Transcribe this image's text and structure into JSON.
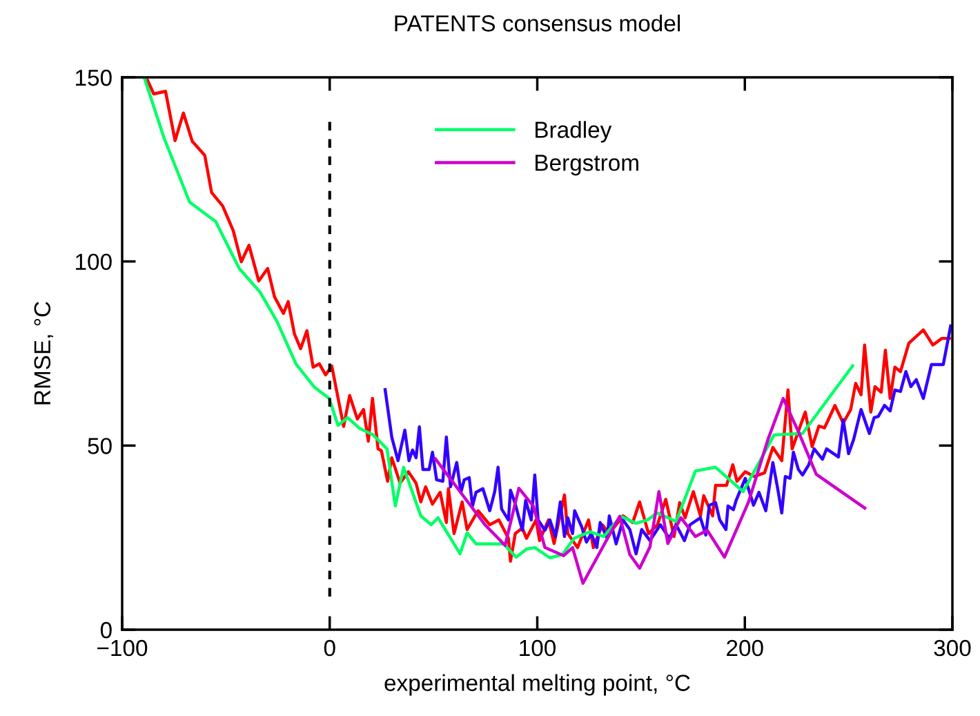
{
  "chart_data": {
    "type": "line",
    "title": "PATENTS consensus model",
    "xlabel": "experimental melting point, °C",
    "ylabel": "RMSE, °C",
    "xlim": [
      -100,
      300
    ],
    "xticks": [
      {
        "value": -100,
        "label": "−100"
      },
      0,
      100,
      200,
      300
    ],
    "ylim": [
      0,
      150
    ],
    "yticks": [
      0,
      50,
      100,
      150
    ],
    "grid": false,
    "legend": "top",
    "marker": "none",
    "line_style": "solid",
    "ref_lines": [
      {
        "axis": "x",
        "value": 0,
        "color": "#000000",
        "line_style": "dashed"
      }
    ],
    "series": [
      {
        "color": "#ff0000",
        "x": [
          -88.1,
          -84.8,
          -79.1,
          -74.5,
          -70.5,
          -66.2,
          -60.2,
          -56.9,
          -51.6,
          -46.5,
          -42.6,
          -38.9,
          -34.2,
          -29.9,
          -26.6,
          -22.3,
          -20.0,
          -17.0,
          -14.0,
          -11.0,
          -8.0,
          -5.0,
          -2.0,
          1.0,
          6.7,
          9.6,
          13.3,
          16.3,
          18.6,
          20.6,
          23.3,
          24.9,
          27.9,
          29.9,
          33.9,
          37.9,
          41.6,
          43.9,
          46.2,
          49.5,
          53.2,
          56.2,
          57.2,
          59.9,
          63.8,
          66.2,
          71.5,
          77.1,
          81.5,
          86.1,
          87.1,
          89.4,
          92.8,
          94.8,
          99.4,
          101.1,
          105.4,
          108.1,
          113.1,
          114.7,
          119.4,
          124.7,
          127.0,
          131.3,
          134.7,
          141.3,
          146.0,
          149.3,
          153.6,
          157.9,
          161.9,
          165.9,
          168.6,
          171.2,
          175.2,
          178.6,
          180.2,
          184.5,
          185.9,
          191.2,
          194.2,
          196.2,
          200.2,
          204.5,
          209.5,
          213.5,
          217.8,
          220.8,
          222.8,
          229.1,
          232.4,
          235.7,
          238.4,
          243.4,
          247.4,
          251.0,
          253.4,
          256.0,
          257.7,
          260.7,
          262.7,
          265.7,
          267.7,
          270.0,
          272.3,
          275.0,
          279.0,
          286.0,
          290.6,
          294.9,
          299.3
        ],
        "values": [
          149.6,
          145.5,
          146.2,
          132.8,
          140.3,
          132.6,
          128.8,
          118.7,
          115.1,
          108.4,
          99.9,
          104.4,
          94.7,
          98.1,
          90.4,
          85.9,
          89.1,
          80.3,
          76.3,
          81.2,
          71.3,
          72.2,
          69.2,
          71.6,
          55.2,
          63.6,
          57.2,
          59.8,
          51.2,
          62.8,
          49.1,
          48.6,
          40.3,
          46.7,
          39.8,
          42.9,
          39.8,
          34.7,
          38.8,
          34.1,
          37.3,
          29.1,
          38.3,
          26.1,
          34.7,
          27.2,
          32.3,
          28.5,
          29.8,
          24.8,
          18.6,
          26.1,
          27.6,
          24.8,
          29.8,
          24.2,
          29.8,
          23.4,
          36.6,
          26.1,
          22.3,
          29.8,
          22.3,
          28.5,
          26.1,
          30.9,
          29.1,
          34.7,
          26.1,
          28.5,
          35.4,
          25.3,
          34.5,
          30.4,
          37.5,
          30.9,
          36.4,
          30.9,
          39.2,
          39.2,
          44.8,
          40.3,
          42.9,
          41.6,
          42.6,
          49.5,
          45.9,
          65.1,
          49.1,
          59.1,
          49.7,
          55.3,
          54.8,
          60.9,
          56.1,
          59.8,
          66.9,
          63.8,
          77.3,
          59.1,
          66.0,
          64.5,
          75.9,
          62.8,
          71.3,
          70.1,
          77.8,
          81.4,
          77.3,
          79.1,
          79.1
        ]
      },
      {
        "color": "#3300ff",
        "x": [
          26.6,
          29.9,
          32.9,
          36.2,
          38.2,
          39.9,
          41.6,
          43.2,
          44.9,
          47.9,
          49.5,
          51.5,
          54.5,
          56.2,
          58.2,
          61.2,
          63.2,
          64.8,
          67.2,
          68.8,
          70.5,
          73.8,
          77.1,
          79.5,
          81.1,
          82.8,
          86.1,
          87.1,
          89.4,
          92.8,
          94.4,
          97.1,
          98.8,
          100.4,
          103.7,
          106.1,
          108.7,
          111.1,
          113.1,
          114.7,
          117.0,
          118.0,
          121.4,
          123.7,
          126.0,
          128.7,
          130.3,
          133.7,
          134.7,
          138.0,
          141.3,
          144.6,
          147.6,
          150.3,
          154.3,
          159.3,
          163.6,
          166.9,
          170.9,
          173.6,
          178.6,
          181.2,
          182.9,
          185.9,
          187.9,
          190.9,
          191.9,
          194.5,
          195.8,
          200.2,
          204.2,
          206.8,
          210.1,
          213.5,
          215.8,
          217.8,
          219.5,
          221.8,
          223.4,
          225.8,
          227.8,
          230.8,
          233.4,
          237.4,
          239.4,
          245.1,
          247.4,
          250.0,
          252.4,
          256.0,
          260.0,
          262.3,
          264.3,
          267.3,
          270.0,
          272.3,
          275.0,
          277.6,
          280.0,
          282.6,
          286.0,
          289.9,
          295.6,
          299.3
        ],
        "values": [
          65.6,
          52.3,
          45.9,
          54.2,
          45.9,
          48.8,
          46.7,
          55.1,
          43.5,
          43.5,
          48.2,
          40.7,
          40.3,
          52.3,
          38.8,
          45.4,
          37.3,
          40.7,
          41.3,
          33.6,
          37.3,
          38.3,
          32.3,
          37.5,
          44.1,
          32.8,
          29.8,
          37.9,
          34.1,
          27.0,
          35.1,
          29.8,
          42.0,
          29.8,
          27.0,
          29.8,
          25.3,
          34.7,
          25.3,
          30.4,
          26.1,
          32.3,
          27.9,
          23.8,
          26.1,
          22.3,
          29.1,
          24.8,
          30.9,
          23.3,
          29.8,
          27.2,
          20.6,
          27.2,
          24.2,
          28.5,
          24.8,
          28.5,
          24.2,
          28.5,
          30.4,
          25.7,
          33.8,
          34.5,
          29.8,
          27.2,
          33.6,
          32.6,
          35.1,
          41.1,
          33.8,
          37.3,
          32.3,
          45.4,
          38.4,
          31.7,
          41.6,
          41.1,
          48.2,
          43.5,
          42.0,
          44.8,
          49.1,
          46.3,
          49.1,
          46.9,
          57.0,
          47.8,
          51.6,
          59.8,
          53.3,
          57.6,
          57.9,
          60.9,
          59.4,
          65.1,
          64.7,
          70.1,
          66.0,
          67.9,
          62.8,
          72.0,
          72.0,
          82.9
        ]
      },
      {
        "name": "Bradley",
        "color": "#00ff66",
        "x": [
          -89.4,
          -79.8,
          -67.5,
          -54.9,
          -43.6,
          -33.6,
          -25.3,
          -16.3,
          -7.3,
          -0.3,
          4.0,
          8.6,
          14.6,
          20.9,
          27.6,
          31.6,
          35.6,
          43.9,
          48.9,
          52.2,
          62.8,
          66.2,
          70.5,
          83.8,
          89.8,
          94.8,
          98.8,
          106.1,
          112.1,
          117.7,
          125.4,
          132.0,
          140.3,
          147.6,
          153.0,
          157.9,
          166.9,
          176.2,
          185.9,
          199.2,
          214.1,
          227.8,
          252.4
        ],
        "values": [
          150,
          133.5,
          116.1,
          110.8,
          98.1,
          91.7,
          83.6,
          72.2,
          65.8,
          62.8,
          55.5,
          57.6,
          54.6,
          52.9,
          49.1,
          33.6,
          44.1,
          30.9,
          28.5,
          30.4,
          20.6,
          26.3,
          23.3,
          23.3,
          19.7,
          21.9,
          22.3,
          19.5,
          20.4,
          24.8,
          26.6,
          25.3,
          30.8,
          28.9,
          29.8,
          31.7,
          29.4,
          43.1,
          44.1,
          37.5,
          52.9,
          53.3,
          72.0
        ]
      },
      {
        "name": "Bergstrom",
        "color": "#cc00cc",
        "x": [
          50.5,
          74.8,
          84.5,
          91.1,
          98.1,
          103.7,
          112.7,
          117.0,
          122.0,
          139.7,
          144.6,
          149.3,
          154.3,
          158.6,
          162.9,
          169.2,
          176.2,
          181.9,
          190.2,
          201.8,
          211.1,
          218.5,
          226.1,
          234.4,
          258.4
        ],
        "values": [
          46.7,
          28.5,
          22.9,
          38.4,
          33.6,
          22.3,
          20.1,
          22.3,
          12.6,
          30.8,
          20.4,
          16.7,
          22.5,
          37.5,
          23.4,
          30.4,
          25.3,
          27.0,
          19.7,
          34.7,
          51.6,
          62.8,
          53.4,
          42.2,
          32.8
        ]
      }
    ]
  }
}
